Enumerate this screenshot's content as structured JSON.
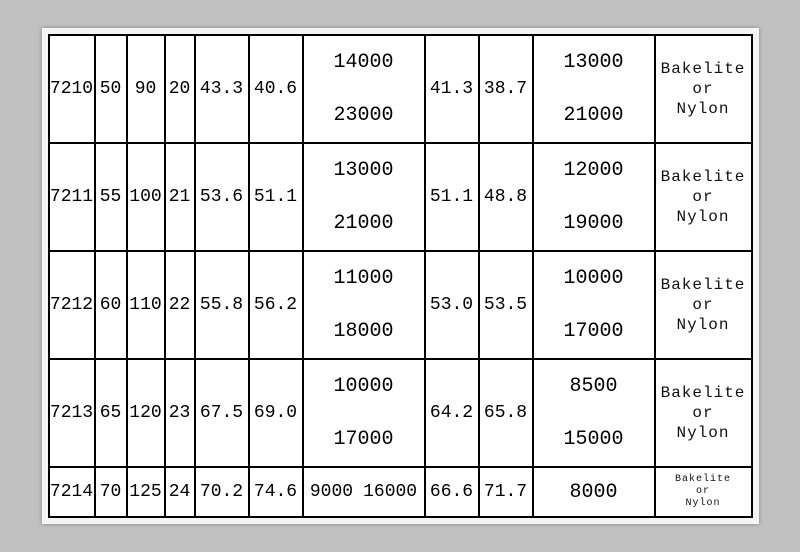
{
  "table": {
    "rows": [
      {
        "model": "7210",
        "d": "50",
        "D": "90",
        "B": "20",
        "cr": "43.3",
        "cor": "40.6",
        "speed_a": [
          "14000",
          "23000"
        ],
        "cr2": "41.3",
        "cor2": "38.7",
        "speed_b": [
          "13000",
          "21000"
        ],
        "material": [
          "Bakelite",
          "or",
          "Nylon"
        ],
        "row_type": "big"
      },
      {
        "model": "7211",
        "d": "55",
        "D": "100",
        "B": "21",
        "cr": "53.6",
        "cor": "51.1",
        "speed_a": [
          "13000",
          "21000"
        ],
        "cr2": "51.1",
        "cor2": "48.8",
        "speed_b": [
          "12000",
          "19000"
        ],
        "material": [
          "Bakelite",
          "or",
          "Nylon"
        ],
        "row_type": "big"
      },
      {
        "model": "7212",
        "d": "60",
        "D": "110",
        "B": "22",
        "cr": "55.8",
        "cor": "56.2",
        "speed_a": [
          "11000",
          "18000"
        ],
        "cr2": "53.0",
        "cor2": "53.5",
        "speed_b": [
          "10000",
          "17000"
        ],
        "material": [
          "Bakelite",
          "or",
          "Nylon"
        ],
        "row_type": "big"
      },
      {
        "model": "7213",
        "d": "65",
        "D": "120",
        "B": "23",
        "cr": "67.5",
        "cor": "69.0",
        "speed_a": [
          "10000",
          "17000"
        ],
        "cr2": "64.2",
        "cor2": "65.8",
        "speed_b": [
          "8500",
          "15000"
        ],
        "material": [
          "Bakelite",
          "or",
          "Nylon"
        ],
        "row_type": "big"
      },
      {
        "model": "7214",
        "d": "70",
        "D": "125",
        "B": "24",
        "cr": "70.2",
        "cor": "74.6",
        "speed_a_inline": [
          "9000",
          "16000"
        ],
        "cr2": "66.6",
        "cor2": "71.7",
        "speed_b_single": "8000",
        "material": [
          "Bakelite",
          "or",
          "Nylon"
        ],
        "row_type": "small"
      }
    ]
  },
  "style": {
    "page_bg": "#c0c0c0",
    "table_bg": "#ffffff",
    "border_color": "#000000",
    "text_color": "#000000",
    "font": "Courier New"
  }
}
